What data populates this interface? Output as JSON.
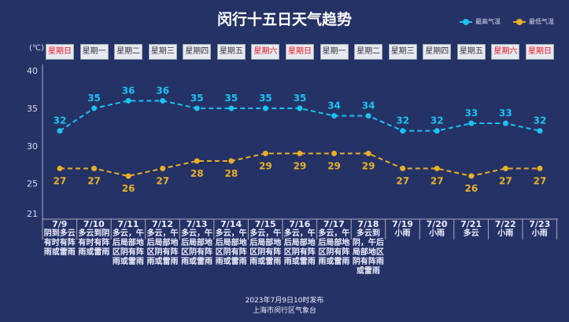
{
  "title": "闵行十五日天气趋势",
  "legend": {
    "high": "最高气温",
    "low": "最低气温"
  },
  "unit": "(℃)",
  "colors": {
    "high": "#1cc3f0",
    "low": "#e8b02a",
    "weekend": "#e8141e"
  },
  "weekdays": [
    {
      "label": "星期日",
      "weekend": true
    },
    {
      "label": "星期一",
      "weekend": false
    },
    {
      "label": "星期二",
      "weekend": false
    },
    {
      "label": "星期三",
      "weekend": false
    },
    {
      "label": "星期四",
      "weekend": false
    },
    {
      "label": "星期五",
      "weekend": false
    },
    {
      "label": "星期六",
      "weekend": true
    },
    {
      "label": "星期日",
      "weekend": true
    },
    {
      "label": "星期一",
      "weekend": false
    },
    {
      "label": "星期二",
      "weekend": false
    },
    {
      "label": "星期三",
      "weekend": false
    },
    {
      "label": "星期四",
      "weekend": false
    },
    {
      "label": "星期五",
      "weekend": false
    },
    {
      "label": "星期六",
      "weekend": true
    },
    {
      "label": "星期日",
      "weekend": true
    }
  ],
  "chart_data": {
    "type": "line",
    "title": "闵行十五日天气趋势",
    "ylabel": "(℃)",
    "ylim": [
      21,
      40
    ],
    "yticks": [
      "21",
      "25",
      "30",
      "35",
      "40"
    ],
    "categories": [
      "7/9",
      "7/10",
      "7/11",
      "7/12",
      "7/13",
      "7/14",
      "7/15",
      "7/16",
      "7/17",
      "7/18",
      "7/19",
      "7/20",
      "7/21",
      "7/22",
      "7/23"
    ],
    "series": [
      {
        "name": "最高气温",
        "values": [
          32,
          35,
          36,
          36,
          35,
          35,
          35,
          35,
          34,
          34,
          32,
          32,
          33,
          33,
          32
        ]
      },
      {
        "name": "最低气温",
        "values": [
          27,
          27,
          26,
          27,
          28,
          28,
          29,
          29,
          29,
          29,
          27,
          27,
          26,
          27,
          27
        ]
      }
    ],
    "legend_position": "top-right"
  },
  "conditions": [
    "阴到多云有时有阵雨或雷雨",
    "多云到阴有时有阵雨或雷雨",
    "多云，午后局部地区阴有阵雨或雷雨",
    "多云，午后局部地区阴有阵雨或雷雨",
    "多云，午后局部地区阴有阵雨或雷雨",
    "多云，午后局部地区阴有阵雨或雷雨",
    "多云，午后局部地区阴有阵雨或雷雨",
    "多云，午后局部地区阴有阵雨或雷雨",
    "多云，午后局部地区阴有阵雨或雷雨",
    "多云到阴，午后局部地区阴有阵雨或雷雨",
    "小雨",
    "小雨",
    "多云",
    "小雨",
    "小雨"
  ],
  "footer": {
    "published": "2023年7月9日10时发布",
    "source": "上海市闵行区气象台"
  }
}
